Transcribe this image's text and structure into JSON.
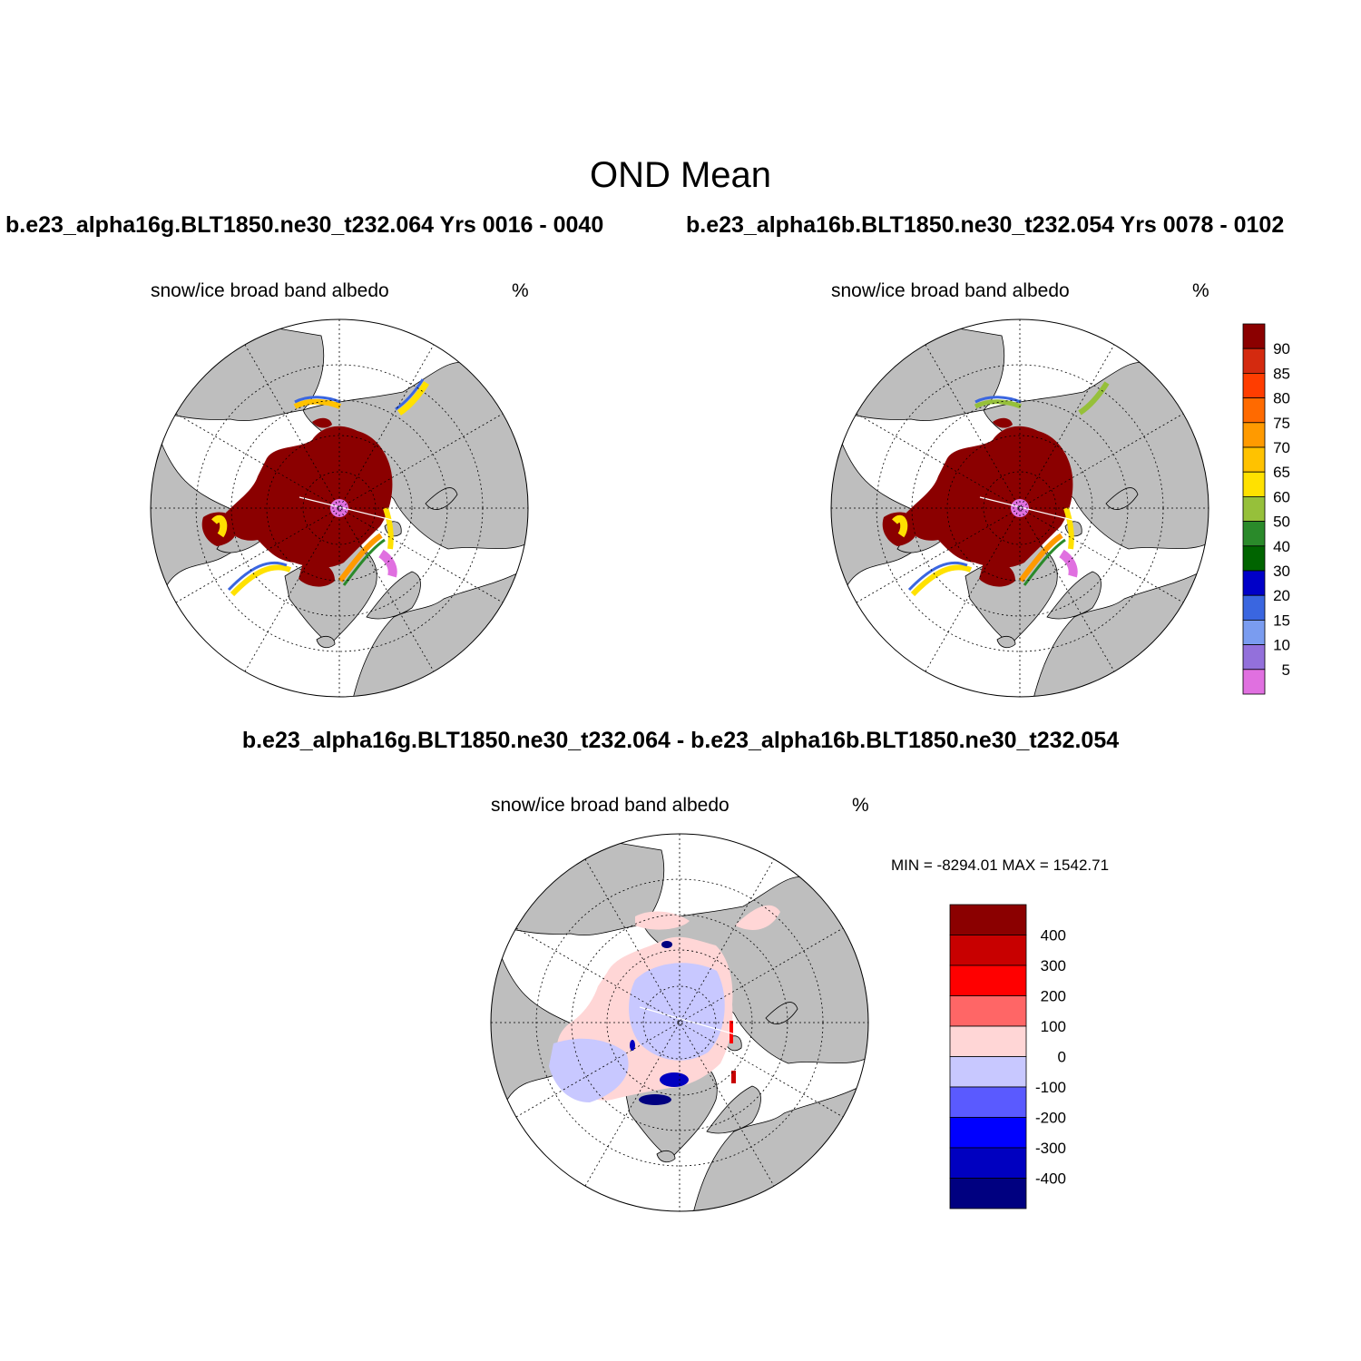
{
  "figure": {
    "title": "OND Mean",
    "case1_title": "b.e23_alpha16g.BLT1850.ne30_t232.064  Yrs 0016 - 0040",
    "case2_title": "b.e23_alpha16b.BLT1850.ne30_t232.054  Yrs 0078 - 0102",
    "diff_title": "b.e23_alpha16g.BLT1850.ne30_t232.064 - b.e23_alpha16b.BLT1850.ne30_t232.054"
  },
  "panels": [
    {
      "id": "case1",
      "variable": "snow/ice broad band albedo",
      "units": "%"
    },
    {
      "id": "case2",
      "variable": "snow/ice broad band albedo",
      "units": "%"
    },
    {
      "id": "diff",
      "variable": "snow/ice broad band albedo",
      "units": "%",
      "minmax_text": "MIN = -8294.01 MAX = 1542.71"
    }
  ],
  "colorbars": {
    "abs": {
      "labels": [
        "90",
        "85",
        "80",
        "75",
        "70",
        "65",
        "60",
        "50",
        "40",
        "30",
        "20",
        "15",
        "10",
        "5"
      ],
      "colors": [
        "#8b0000",
        "#d42a0f",
        "#ff3d00",
        "#ff6a00",
        "#ff9a00",
        "#ffc200",
        "#ffe100",
        "#96c03a",
        "#2a8a2a",
        "#006400",
        "#0000c8",
        "#3a66e0",
        "#7a9cf0",
        "#9370db",
        "#e070e0"
      ]
    },
    "diff": {
      "labels": [
        "400",
        "300",
        "200",
        "100",
        "0",
        "-100",
        "-200",
        "-300",
        "-400"
      ],
      "colors": [
        "#8b0000",
        "#c80000",
        "#ff0000",
        "#ff6666",
        "#ffd6d6",
        "#c8c8ff",
        "#5a5aff",
        "#0000ff",
        "#0000c0",
        "#000080"
      ]
    }
  },
  "map_colors": {
    "land": "#bebebe",
    "ocean": "#ffffff",
    "ice_core": "#8b0000",
    "pole_hole": "#e070e0",
    "diff_neg_light": "#c8c8ff",
    "diff_pos_light": "#ffd6d6"
  }
}
